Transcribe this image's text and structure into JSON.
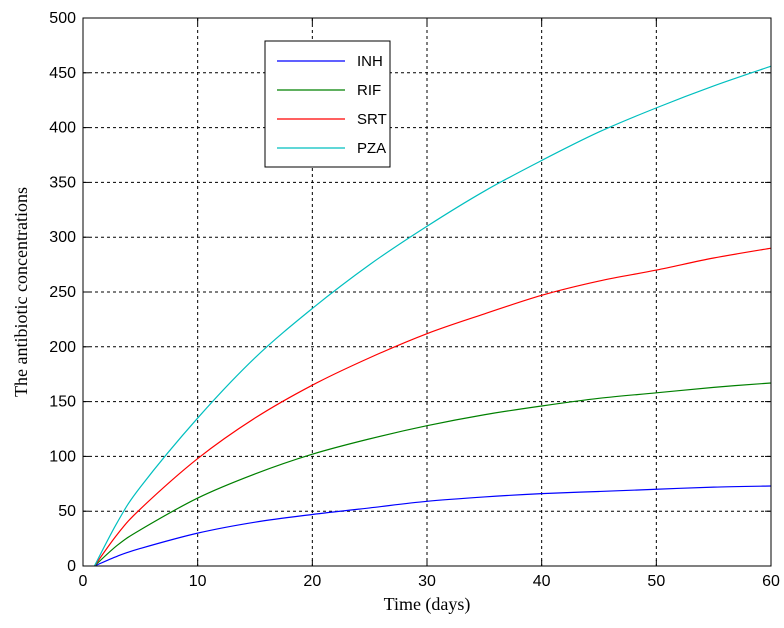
{
  "chart_data": {
    "type": "line",
    "title": "",
    "xlabel": "Time (days)",
    "ylabel": "The antibiotic concentrations",
    "xlim": [
      0,
      60
    ],
    "ylim": [
      0,
      500
    ],
    "xticks": [
      0,
      10,
      20,
      30,
      40,
      50,
      60
    ],
    "yticks": [
      0,
      50,
      100,
      150,
      200,
      250,
      300,
      350,
      400,
      450,
      500
    ],
    "grid": true,
    "legend_position": "top-center",
    "series": [
      {
        "name": "INH",
        "color": "#0000ff",
        "x": [
          1,
          3,
          5,
          10,
          15,
          20,
          25,
          30,
          35,
          40,
          45,
          50,
          55,
          60
        ],
        "y": [
          0,
          9,
          16,
          30,
          40,
          47,
          53,
          59,
          63,
          66,
          68,
          70,
          72,
          73
        ]
      },
      {
        "name": "RIF",
        "color": "#008000",
        "x": [
          1,
          3,
          5,
          10,
          15,
          20,
          25,
          30,
          35,
          40,
          45,
          50,
          55,
          60
        ],
        "y": [
          0,
          19,
          33,
          62,
          84,
          102,
          116,
          128,
          138,
          146,
          153,
          158,
          163,
          167
        ]
      },
      {
        "name": "SRT",
        "color": "#ff0000",
        "x": [
          1,
          3,
          5,
          10,
          15,
          20,
          25,
          30,
          35,
          40,
          45,
          50,
          55,
          60
        ],
        "y": [
          0,
          29,
          52,
          98,
          135,
          165,
          190,
          212,
          230,
          247,
          260,
          270,
          281,
          290
        ]
      },
      {
        "name": "PZA",
        "color": "#00bfbf",
        "x": [
          1,
          3,
          5,
          10,
          15,
          20,
          25,
          30,
          35,
          40,
          45,
          50,
          55,
          60
        ],
        "y": [
          0,
          40,
          72,
          135,
          190,
          235,
          275,
          310,
          342,
          370,
          396,
          418,
          438,
          456
        ]
      }
    ]
  }
}
